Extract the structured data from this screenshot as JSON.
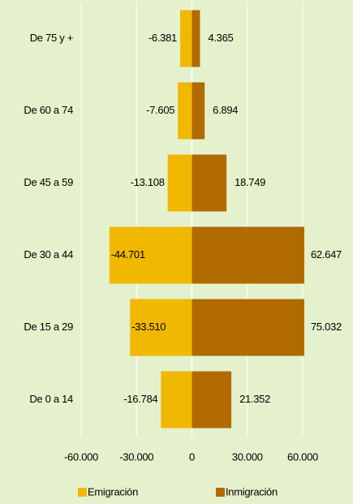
{
  "chart_data": {
    "type": "bar",
    "orientation": "horizontal",
    "categories": [
      "De 75 y +",
      "De 60 a 74",
      "De 45 a 59",
      "De 30 a 44",
      "De 15 a 29",
      "De 0 a 14"
    ],
    "series": [
      {
        "name": "Emigración",
        "color": "#f0b800",
        "values": [
          -6381,
          -7605,
          -13108,
          -44701,
          -33510,
          -16784
        ],
        "value_labels": [
          "-6.381",
          "-7.605",
          "-13.108",
          "-44.701",
          "-33.510",
          "-16.784"
        ]
      },
      {
        "name": "Inmigración",
        "color": "#b06a00",
        "values": [
          4365,
          6894,
          18749,
          62647,
          75032,
          21352
        ],
        "value_labels": [
          "4.365",
          "6.894",
          "18.749",
          "62.647",
          "75.032",
          "21.352"
        ]
      }
    ],
    "xlim": [
      -60000,
      60000
    ],
    "xticks": [
      {
        "value": -60000,
        "label": "-60.000"
      },
      {
        "value": -30000,
        "label": "-30.000"
      },
      0,
      {
        "value": 30000,
        "label": "30.000"
      },
      {
        "value": 60000,
        "label": "60.000"
      }
    ],
    "grid": true,
    "legend": "bottom"
  }
}
